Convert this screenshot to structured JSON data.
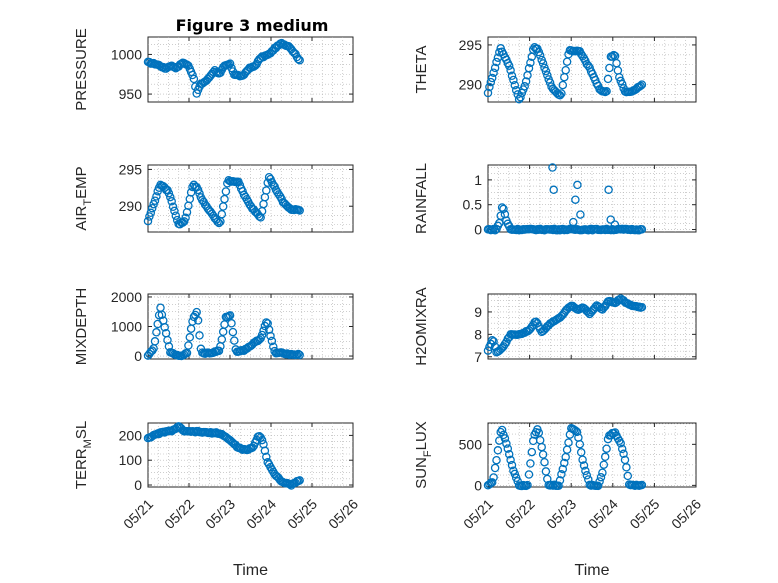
{
  "figure_title": "Figure 3 medium",
  "chart_data": [
    {
      "type": "scatter",
      "ylabel": "PRESSURE",
      "yticks": [
        950,
        1000
      ],
      "ylim": [
        940,
        1022
      ],
      "xlim": [
        0,
        5
      ],
      "keys": [
        [
          0,
          990
        ],
        [
          0.25,
          987
        ],
        [
          0.42,
          982
        ],
        [
          0.55,
          986
        ],
        [
          0.7,
          983
        ],
        [
          0.85,
          990
        ],
        [
          1.0,
          985
        ],
        [
          1.12,
          970
        ],
        [
          1.18,
          950
        ],
        [
          1.28,
          962
        ],
        [
          1.45,
          968
        ],
        [
          1.62,
          980
        ],
        [
          1.75,
          975
        ],
        [
          1.85,
          985
        ],
        [
          2.0,
          988
        ],
        [
          2.1,
          975
        ],
        [
          2.3,
          972
        ],
        [
          2.45,
          982
        ],
        [
          2.6,
          985
        ],
        [
          2.75,
          996
        ],
        [
          2.95,
          1000
        ],
        [
          3.1,
          1008
        ],
        [
          3.25,
          1014
        ],
        [
          3.45,
          1010
        ],
        [
          3.6,
          1000
        ],
        [
          3.7,
          992
        ]
      ]
    },
    {
      "type": "scatter",
      "ylabel": "THETA",
      "yticks": [
        290,
        295
      ],
      "ylim": [
        287.8,
        296
      ],
      "xlim": [
        0,
        5
      ],
      "keys": [
        [
          0,
          289
        ],
        [
          0.3,
          294.6
        ],
        [
          0.5,
          292.5
        ],
        [
          0.75,
          288.1
        ],
        [
          0.9,
          290
        ],
        [
          1.1,
          294.7
        ],
        [
          1.2,
          294.5
        ],
        [
          1.35,
          292.2
        ],
        [
          1.55,
          289.5
        ],
        [
          1.75,
          288.5
        ],
        [
          1.95,
          294.3
        ],
        [
          2.2,
          294.2
        ],
        [
          2.45,
          292
        ],
        [
          2.7,
          289.2
        ],
        [
          2.85,
          289.1
        ],
        [
          2.95,
          293.5
        ],
        [
          3.05,
          293.8
        ],
        [
          3.15,
          291
        ],
        [
          3.3,
          289
        ],
        [
          3.5,
          289.2
        ],
        [
          3.7,
          290
        ]
      ]
    },
    {
      "type": "scatter",
      "ylabel": "AIR_TEMP",
      "yticks": [
        290,
        295
      ],
      "ylim": [
        286.5,
        295.6
      ],
      "xlim": [
        0,
        5
      ],
      "keys": [
        [
          0,
          288
        ],
        [
          0.3,
          293
        ],
        [
          0.5,
          292
        ],
        [
          0.75,
          287.5
        ],
        [
          0.9,
          288
        ],
        [
          1.1,
          293
        ],
        [
          1.2,
          292.5
        ],
        [
          1.3,
          291
        ],
        [
          1.55,
          289
        ],
        [
          1.75,
          287.5
        ],
        [
          1.95,
          293.5
        ],
        [
          2.2,
          293.3
        ],
        [
          2.35,
          291.5
        ],
        [
          2.5,
          290
        ],
        [
          2.75,
          288.5
        ],
        [
          2.95,
          294
        ],
        [
          3.1,
          292.5
        ],
        [
          3.3,
          290.5
        ],
        [
          3.5,
          289.5
        ],
        [
          3.7,
          289.5
        ]
      ]
    },
    {
      "type": "scatter",
      "ylabel": "RAINFALL",
      "yticks": [
        0,
        0.5,
        1
      ],
      "yticklabels": [
        "0",
        "0.5",
        "1"
      ],
      "ylim": [
        -0.05,
        1.3
      ],
      "xlim": [
        0,
        5
      ],
      "keys": [
        [
          0,
          0
        ],
        [
          0.2,
          0
        ],
        [
          0.28,
          0.15
        ],
        [
          0.35,
          0.5
        ],
        [
          0.45,
          0.15
        ],
        [
          0.55,
          0
        ],
        [
          3.0,
          0
        ],
        [
          3.7,
          0
        ]
      ],
      "spikes": [
        [
          1.55,
          1.25
        ],
        [
          1.58,
          0.8
        ],
        [
          2.05,
          0.15
        ],
        [
          2.1,
          0.6
        ],
        [
          2.15,
          0.9
        ],
        [
          2.22,
          0.3
        ],
        [
          2.9,
          0.8
        ],
        [
          2.95,
          0.2
        ],
        [
          3.05,
          0.1
        ]
      ]
    },
    {
      "type": "scatter",
      "ylabel": "MIXDEPTH",
      "yticks": [
        0,
        1000,
        2000
      ],
      "ylim": [
        -100,
        2100
      ],
      "xlim": [
        0,
        5
      ],
      "keys": [
        [
          0,
          0
        ],
        [
          0.15,
          300
        ],
        [
          0.3,
          1650
        ],
        [
          0.45,
          700
        ],
        [
          0.55,
          100
        ],
        [
          0.8,
          0
        ],
        [
          0.95,
          100
        ],
        [
          1.1,
          1300
        ],
        [
          1.2,
          1500
        ],
        [
          1.3,
          100
        ],
        [
          1.55,
          100
        ],
        [
          1.75,
          200
        ],
        [
          1.9,
          1300
        ],
        [
          2.0,
          1400
        ],
        [
          2.15,
          150
        ],
        [
          2.35,
          200
        ],
        [
          2.55,
          400
        ],
        [
          2.75,
          600
        ],
        [
          2.9,
          1200
        ],
        [
          3.0,
          600
        ],
        [
          3.1,
          100
        ],
        [
          3.3,
          100
        ],
        [
          3.5,
          50
        ],
        [
          3.7,
          50
        ]
      ]
    },
    {
      "type": "scatter",
      "ylabel": "H2OMIXRA",
      "yticks": [
        7,
        8,
        9
      ],
      "ylim": [
        6.9,
        9.8
      ],
      "xlim": [
        0,
        5
      ],
      "keys": [
        [
          0,
          7.3
        ],
        [
          0.12,
          7.8
        ],
        [
          0.2,
          7.2
        ],
        [
          0.35,
          7.4
        ],
        [
          0.55,
          8
        ],
        [
          0.8,
          8
        ],
        [
          1.0,
          8.2
        ],
        [
          1.15,
          8.6
        ],
        [
          1.3,
          8.1
        ],
        [
          1.5,
          8.5
        ],
        [
          1.7,
          8.7
        ],
        [
          1.85,
          9.0
        ],
        [
          2.0,
          9.3
        ],
        [
          2.15,
          9.1
        ],
        [
          2.3,
          9.2
        ],
        [
          2.45,
          8.9
        ],
        [
          2.6,
          9.3
        ],
        [
          2.75,
          9.1
        ],
        [
          2.9,
          9.5
        ],
        [
          3.05,
          9.4
        ],
        [
          3.2,
          9.6
        ],
        [
          3.4,
          9.3
        ],
        [
          3.7,
          9.2
        ]
      ]
    },
    {
      "type": "scatter",
      "ylabel": "TERR_MSL",
      "yticks": [
        0,
        100,
        200
      ],
      "ylim": [
        -8,
        250
      ],
      "xlim": [
        0,
        5
      ],
      "keys": [
        [
          0,
          190
        ],
        [
          0.3,
          210
        ],
        [
          0.6,
          220
        ],
        [
          0.75,
          235
        ],
        [
          0.9,
          215
        ],
        [
          1.2,
          215
        ],
        [
          1.5,
          210
        ],
        [
          1.7,
          210
        ],
        [
          1.85,
          200
        ],
        [
          2.0,
          180
        ],
        [
          2.2,
          150
        ],
        [
          2.4,
          140
        ],
        [
          2.55,
          150
        ],
        [
          2.7,
          200
        ],
        [
          2.8,
          180
        ],
        [
          2.9,
          100
        ],
        [
          3.1,
          40
        ],
        [
          3.3,
          10
        ],
        [
          3.5,
          0
        ],
        [
          3.7,
          20
        ]
      ]
    },
    {
      "type": "scatter",
      "ylabel": "SUN_FLUX",
      "yticks": [
        0,
        500
      ],
      "ylim": [
        -20,
        760
      ],
      "xlim": [
        0,
        5
      ],
      "keys": [
        [
          0,
          0
        ],
        [
          0.12,
          50
        ],
        [
          0.2,
          300
        ],
        [
          0.32,
          700
        ],
        [
          0.45,
          500
        ],
        [
          0.6,
          200
        ],
        [
          0.75,
          0
        ],
        [
          0.95,
          0
        ],
        [
          1.1,
          600
        ],
        [
          1.2,
          700
        ],
        [
          1.35,
          300
        ],
        [
          1.45,
          0
        ],
        [
          1.7,
          0
        ],
        [
          1.85,
          300
        ],
        [
          2.0,
          700
        ],
        [
          2.15,
          650
        ],
        [
          2.3,
          250
        ],
        [
          2.45,
          0
        ],
        [
          2.65,
          0
        ],
        [
          2.75,
          150
        ],
        [
          2.9,
          600
        ],
        [
          3.05,
          650
        ],
        [
          3.2,
          500
        ],
        [
          3.3,
          300
        ],
        [
          3.4,
          0
        ],
        [
          3.7,
          0
        ]
      ]
    }
  ],
  "x_ticks": [
    "05/21",
    "05/22",
    "05/23",
    "05/24",
    "05/25",
    "05/26"
  ],
  "x_label": "Time",
  "colors": {
    "marker": "#0072bd",
    "axes": "#262626",
    "grid": "#b0b0b0"
  }
}
